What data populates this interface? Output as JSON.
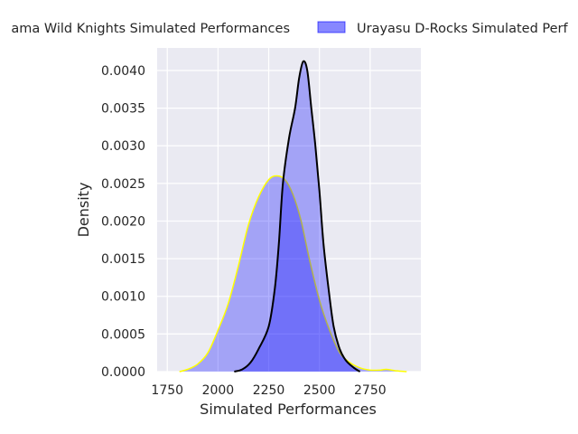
{
  "chart_data": {
    "type": "area",
    "title": "",
    "xlabel": "Simulated Performances",
    "ylabel": "Density",
    "xlim": [
      1700,
      3000
    ],
    "ylim": [
      0,
      0.0043
    ],
    "xticks": [
      1750,
      2000,
      2250,
      2500,
      2750
    ],
    "xtick_labels": [
      "1750",
      "2000",
      "2250",
      "2500",
      "2750"
    ],
    "yticks": [
      0,
      0.0005,
      0.001,
      0.0015,
      0.002,
      0.0025,
      0.003,
      0.0035,
      0.004
    ],
    "ytick_labels": [
      "0.0000",
      "0.0005",
      "0.0010",
      "0.0015",
      "0.0020",
      "0.0025",
      "0.0030",
      "0.0035",
      "0.0040"
    ],
    "grid": true,
    "legend_placement": "top-center, outside plot",
    "style": {
      "background": "#eaeaf2",
      "grid_color": "#ffffff",
      "fill_color": "#0000ff"
    },
    "series": [
      {
        "name": "Saitama Wild Knights Simulated Performances",
        "legend_visible_text": "ama Wild Knights Simulated Performances",
        "line_color": "#ffff00",
        "fill_opacity": 0.3,
        "points": [
          [
            1810,
            0
          ],
          [
            1850,
            3e-05
          ],
          [
            1900,
            0.0001
          ],
          [
            1950,
            0.00025
          ],
          [
            2000,
            0.00055
          ],
          [
            2050,
            0.0009
          ],
          [
            2100,
            0.0014
          ],
          [
            2150,
            0.00195
          ],
          [
            2200,
            0.00232
          ],
          [
            2250,
            0.00255
          ],
          [
            2290,
            0.0026
          ],
          [
            2330,
            0.00255
          ],
          [
            2370,
            0.00235
          ],
          [
            2410,
            0.002
          ],
          [
            2450,
            0.0015
          ],
          [
            2500,
            0.00095
          ],
          [
            2550,
            0.00055
          ],
          [
            2600,
            0.00025
          ],
          [
            2650,
            0.00012
          ],
          [
            2700,
            5e-05
          ],
          [
            2750,
            2e-05
          ],
          [
            2800,
            2e-05
          ],
          [
            2830,
            3e-05
          ],
          [
            2880,
            1e-05
          ],
          [
            2930,
            0
          ]
        ]
      },
      {
        "name": "Urayasu D-Rocks Simulated Performances",
        "legend_visible_text": "Urayasu D-Rocks Simulated Perf",
        "line_color": "#000000",
        "fill_opacity": 0.3,
        "points": [
          [
            2080,
            0
          ],
          [
            2120,
            3e-05
          ],
          [
            2160,
            0.00012
          ],
          [
            2200,
            0.0003
          ],
          [
            2250,
            0.0006
          ],
          [
            2280,
            0.0011
          ],
          [
            2300,
            0.0017
          ],
          [
            2320,
            0.0025
          ],
          [
            2350,
            0.0031
          ],
          [
            2380,
            0.0035
          ],
          [
            2400,
            0.0039
          ],
          [
            2420,
            0.00412
          ],
          [
            2440,
            0.004
          ],
          [
            2460,
            0.0035
          ],
          [
            2480,
            0.003
          ],
          [
            2500,
            0.0024
          ],
          [
            2520,
            0.0017
          ],
          [
            2545,
            0.0011
          ],
          [
            2570,
            0.0006
          ],
          [
            2600,
            0.0003
          ],
          [
            2630,
            0.00015
          ],
          [
            2670,
            5e-05
          ],
          [
            2700,
            0
          ]
        ]
      }
    ]
  }
}
